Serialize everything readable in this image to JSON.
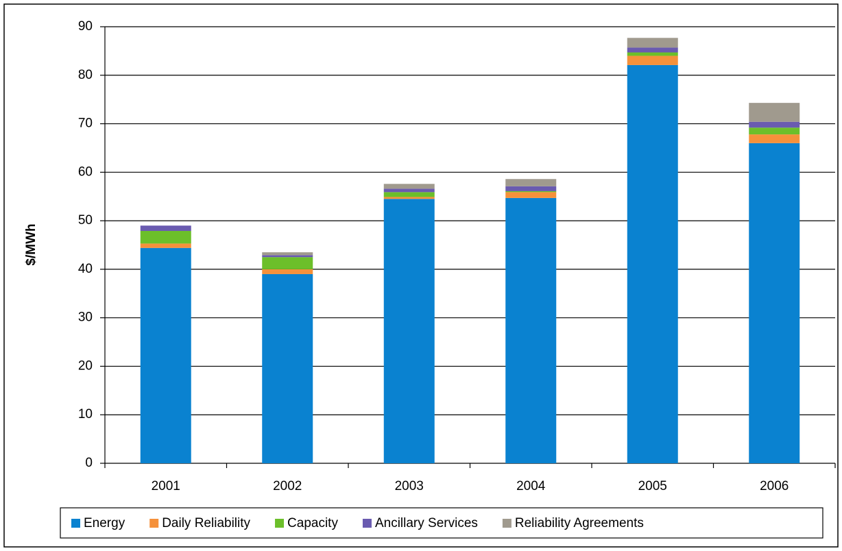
{
  "chart_data": {
    "type": "stacked_bar",
    "y_label": "$/MWh",
    "categories": [
      "2001",
      "2002",
      "2003",
      "2004",
      "2005",
      "2006"
    ],
    "series": [
      {
        "name": "Energy",
        "color": "#0a82d0",
        "values": [
          44.4,
          39.0,
          54.5,
          54.7,
          82.1,
          66.0
        ]
      },
      {
        "name": "Daily Reliability",
        "color": "#f5913b",
        "values": [
          0.9,
          1.0,
          0.4,
          1.2,
          1.9,
          1.8
        ]
      },
      {
        "name": "Capacity",
        "color": "#6cbf2a",
        "values": [
          2.6,
          2.5,
          1.0,
          0.2,
          0.7,
          1.4
        ]
      },
      {
        "name": "Ancillary Services",
        "color": "#6a5bb0",
        "values": [
          1.1,
          0.4,
          0.7,
          1.0,
          1.0,
          1.2
        ]
      },
      {
        "name": "Reliability Agreements",
        "color": "#a09a8e",
        "values": [
          0,
          0.6,
          1.0,
          1.5,
          2.0,
          3.9
        ]
      }
    ],
    "ylim": [
      0,
      90
    ],
    "yticks": [
      0,
      10,
      20,
      30,
      40,
      50,
      60,
      70,
      80,
      90
    ],
    "grid": true,
    "legend": "bottom"
  }
}
